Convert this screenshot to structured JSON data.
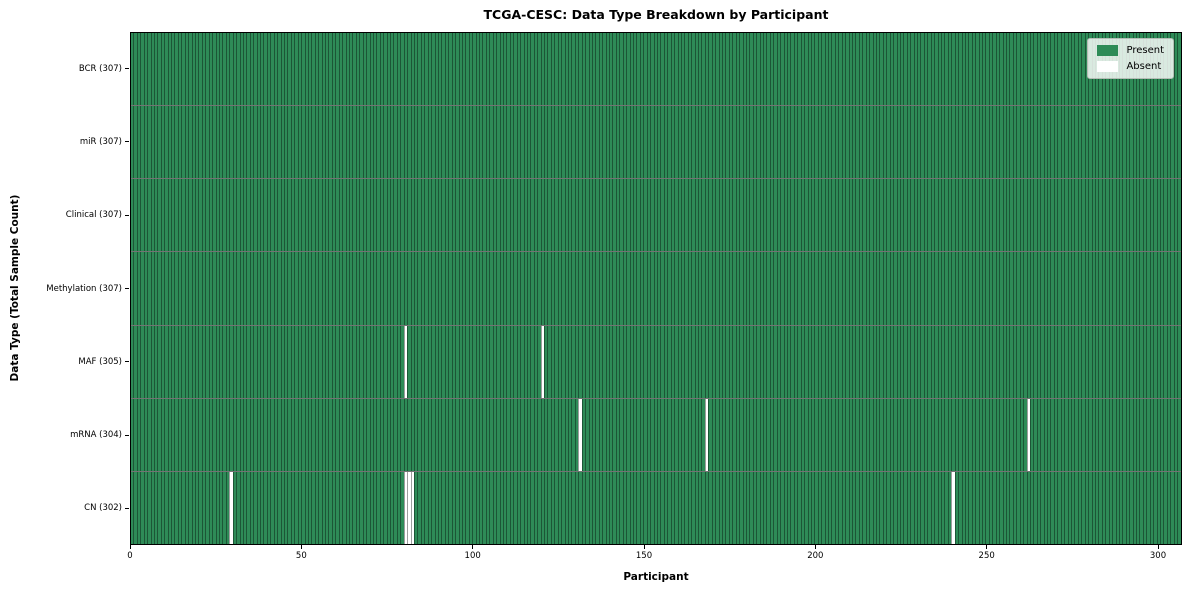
{
  "figure": {
    "title": "TCGA-CESC: Data Type Breakdown by Participant",
    "xlabel": "Participant",
    "ylabel": "Data Type (Total Sample Count)"
  },
  "legend": {
    "items": [
      {
        "label": "Present",
        "color": "#2e8b57"
      },
      {
        "label": "Absent",
        "color": "#ffffff"
      }
    ]
  },
  "chart_data": {
    "type": "heatmap",
    "title": "TCGA-CESC: Data Type Breakdown by Participant",
    "xlabel": "Participant",
    "ylabel": "Data Type (Total Sample Count)",
    "legend": {
      "position": "upper right",
      "entries": [
        "Present",
        "Absent"
      ]
    },
    "grid": false,
    "n_participants": 307,
    "x_axis": {
      "range": [
        0,
        307
      ],
      "ticks": [
        0,
        50,
        100,
        150,
        200,
        250,
        300
      ]
    },
    "colors": {
      "present": "#2e8b57",
      "absent": "#ffffff",
      "cell_edge": "rgba(0,0,0,0.38)",
      "row_separator": "rgba(0,0,0,0.55)"
    },
    "rows": [
      {
        "label": "BCR (307)",
        "data_type": "BCR",
        "present_count": 307,
        "absent_count": 0,
        "absent_participants": []
      },
      {
        "label": "miR (307)",
        "data_type": "miR",
        "present_count": 307,
        "absent_count": 0,
        "absent_participants": []
      },
      {
        "label": "Clinical (307)",
        "data_type": "Clinical",
        "present_count": 307,
        "absent_count": 0,
        "absent_participants": []
      },
      {
        "label": "Methylation (307)",
        "data_type": "Methylation",
        "present_count": 307,
        "absent_count": 0,
        "absent_participants": []
      },
      {
        "label": "MAF (305)",
        "data_type": "MAF",
        "present_count": 305,
        "absent_count": 2,
        "absent_participants": [
          80,
          120
        ]
      },
      {
        "label": "mRNA (304)",
        "data_type": "mRNA",
        "present_count": 304,
        "absent_count": 3,
        "absent_participants": [
          131,
          168,
          262
        ]
      },
      {
        "label": "CN (302)",
        "data_type": "CN",
        "present_count": 302,
        "absent_count": 5,
        "absent_participants": [
          29,
          80,
          81,
          82,
          240
        ]
      }
    ]
  }
}
